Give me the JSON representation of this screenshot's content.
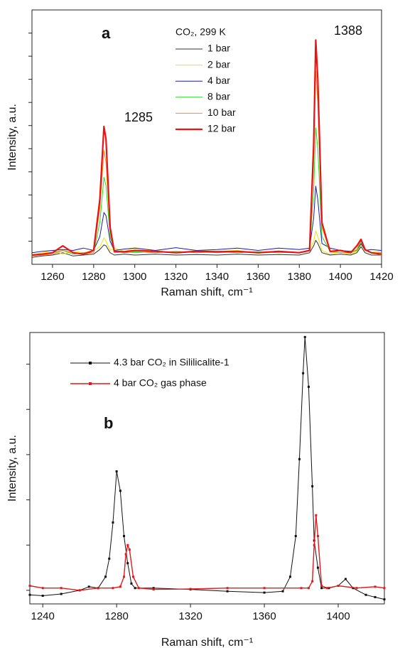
{
  "chart_data": [
    {
      "type": "line",
      "panel_label": "a",
      "legend_title": "CO₂, 299 K",
      "annotations": [
        "1285",
        "1388"
      ],
      "xlabel": "Raman shift, cm⁻¹",
      "ylabel": "Intensity, a.u.",
      "xlim": [
        1250,
        1420
      ],
      "xticks": [
        1260,
        1280,
        1300,
        1320,
        1340,
        1360,
        1380,
        1400,
        1420
      ],
      "ylim": [
        0,
        5.5
      ],
      "yticks": [
        0.5,
        1,
        1.5,
        2,
        2.5,
        3,
        3.5,
        4,
        4.5,
        5
      ],
      "x": [
        1250,
        1255,
        1260,
        1265,
        1270,
        1275,
        1280,
        1283,
        1285,
        1286,
        1288,
        1290,
        1295,
        1300,
        1310,
        1320,
        1330,
        1340,
        1350,
        1360,
        1370,
        1380,
        1385,
        1387,
        1388,
        1389,
        1391,
        1395,
        1400,
        1405,
        1408,
        1410,
        1412,
        1415,
        1420
      ],
      "series": [
        {
          "name": "1 bar",
          "color": "#333333",
          "values": [
            0.15,
            0.18,
            0.2,
            0.25,
            0.18,
            0.2,
            0.22,
            0.32,
            0.42,
            0.4,
            0.25,
            0.2,
            0.22,
            0.2,
            0.22,
            0.2,
            0.21,
            0.2,
            0.22,
            0.2,
            0.21,
            0.2,
            0.25,
            0.4,
            0.52,
            0.45,
            0.25,
            0.2,
            0.22,
            0.2,
            0.25,
            0.38,
            0.25,
            0.2,
            0.2
          ]
        },
        {
          "name": "2 bar",
          "color": "#f2e600",
          "values": [
            0.2,
            0.25,
            0.3,
            0.22,
            0.28,
            0.25,
            0.3,
            0.38,
            0.57,
            0.5,
            0.3,
            0.35,
            0.28,
            0.36,
            0.3,
            0.25,
            0.3,
            0.28,
            0.3,
            0.24,
            0.28,
            0.26,
            0.3,
            0.5,
            0.72,
            0.6,
            0.3,
            0.22,
            0.26,
            0.22,
            0.28,
            0.42,
            0.3,
            0.25,
            0.3
          ]
        },
        {
          "name": "4 bar",
          "color": "#1a1ab8",
          "values": [
            0.25,
            0.28,
            0.3,
            0.32,
            0.3,
            0.35,
            0.3,
            0.6,
            1.12,
            1.05,
            0.5,
            0.3,
            0.33,
            0.35,
            0.3,
            0.36,
            0.3,
            0.32,
            0.35,
            0.3,
            0.35,
            0.32,
            0.35,
            1.0,
            1.69,
            1.4,
            0.45,
            0.35,
            0.3,
            0.28,
            0.3,
            0.45,
            0.3,
            0.32,
            0.3
          ]
        },
        {
          "name": "8 bar",
          "color": "#22dd22",
          "values": [
            0.18,
            0.2,
            0.25,
            0.3,
            0.22,
            0.25,
            0.25,
            0.9,
            1.88,
            1.7,
            0.6,
            0.28,
            0.25,
            0.27,
            0.25,
            0.28,
            0.25,
            0.27,
            0.25,
            0.27,
            0.25,
            0.26,
            0.3,
            1.6,
            2.95,
            2.5,
            0.6,
            0.28,
            0.25,
            0.25,
            0.3,
            0.5,
            0.3,
            0.25,
            0.25
          ]
        },
        {
          "name": "10 bar",
          "color": "#ff8c1a",
          "values": [
            0.18,
            0.2,
            0.22,
            0.3,
            0.25,
            0.22,
            0.25,
            1.2,
            2.46,
            2.2,
            0.7,
            0.25,
            0.27,
            0.25,
            0.27,
            0.25,
            0.27,
            0.25,
            0.27,
            0.25,
            0.27,
            0.25,
            0.3,
            2.2,
            4.18,
            3.5,
            0.8,
            0.27,
            0.25,
            0.25,
            0.32,
            0.55,
            0.3,
            0.25,
            0.2
          ]
        },
        {
          "name": "12 bar",
          "color": "#ee1111",
          "values": [
            0.2,
            0.22,
            0.25,
            0.4,
            0.25,
            0.22,
            0.3,
            1.4,
            2.98,
            2.7,
            0.8,
            0.28,
            0.27,
            0.3,
            0.28,
            0.25,
            0.28,
            0.27,
            0.28,
            0.25,
            0.28,
            0.25,
            0.3,
            2.6,
            4.85,
            4.0,
            0.9,
            0.28,
            0.3,
            0.25,
            0.4,
            0.54,
            0.32,
            0.25,
            0.22
          ]
        }
      ]
    },
    {
      "type": "line",
      "panel_label": "b",
      "xlabel": "Raman shift, cm⁻¹",
      "ylabel": "Intensity, a.u.",
      "xlim": [
        1233,
        1425
      ],
      "xticks": [
        1240,
        1280,
        1320,
        1360,
        1400
      ],
      "ylim": [
        -0.3,
        5.7
      ],
      "yticks": [
        0,
        1,
        2,
        3,
        4,
        5
      ],
      "series": [
        {
          "name": "4.3 bar CO₂ in Sililicalite-1",
          "color": "#111111",
          "x": [
            1233,
            1240,
            1250,
            1260,
            1265,
            1270,
            1274,
            1276,
            1278,
            1280,
            1282,
            1284,
            1286,
            1288,
            1290,
            1300,
            1320,
            1340,
            1360,
            1370,
            1374,
            1377,
            1379,
            1381,
            1382,
            1384,
            1386,
            1387,
            1389,
            1391,
            1395,
            1400,
            1404,
            1408,
            1415,
            1420,
            1425
          ],
          "values": [
            -0.1,
            -0.12,
            -0.08,
            0.0,
            0.08,
            0.05,
            0.3,
            0.7,
            1.5,
            2.63,
            2.2,
            1.2,
            0.6,
            0.15,
            0.05,
            0.05,
            0.02,
            -0.02,
            -0.05,
            -0.02,
            0.3,
            1.2,
            2.9,
            4.8,
            5.6,
            4.5,
            2.3,
            1.1,
            0.5,
            0.05,
            0.05,
            0.1,
            0.25,
            0.05,
            -0.1,
            -0.15,
            -0.2
          ]
        },
        {
          "name": "4 bar CO₂ gas phase",
          "color": "#e31a1a",
          "x": [
            1233,
            1240,
            1250,
            1260,
            1270,
            1278,
            1282,
            1284,
            1285,
            1286,
            1287,
            1289,
            1292,
            1300,
            1320,
            1340,
            1360,
            1380,
            1384,
            1386,
            1387,
            1388,
            1389,
            1391,
            1394,
            1400,
            1410,
            1420,
            1425
          ],
          "values": [
            0.1,
            0.05,
            0.05,
            0.0,
            0.05,
            0.05,
            0.08,
            0.3,
            0.8,
            1.0,
            0.9,
            0.3,
            0.05,
            0.02,
            0.03,
            0.05,
            0.05,
            0.05,
            0.05,
            0.2,
            1.0,
            1.66,
            1.2,
            0.1,
            0.05,
            0.1,
            0.05,
            0.08,
            0.05
          ]
        }
      ]
    }
  ]
}
